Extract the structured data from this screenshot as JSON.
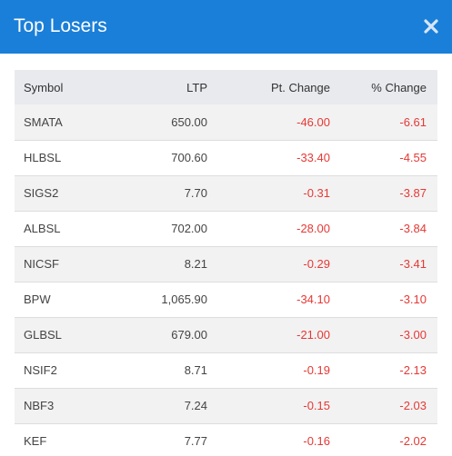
{
  "modal": {
    "title": "Top Losers",
    "close_icon": "close-icon"
  },
  "colors": {
    "header_bg": "#1a7fd8",
    "negative": "#e53935",
    "stripe": "#f2f2f2",
    "thead_bg": "#e8eaee"
  },
  "table": {
    "headers": {
      "symbol": "Symbol",
      "ltp": "LTP",
      "pt_change": "Pt. Change",
      "pct_change": "% Change"
    },
    "rows": [
      {
        "symbol": "SMATA",
        "ltp": "650.00",
        "pt_change": "-46.00",
        "pct_change": "-6.61"
      },
      {
        "symbol": "HLBSL",
        "ltp": "700.60",
        "pt_change": "-33.40",
        "pct_change": "-4.55"
      },
      {
        "symbol": "SIGS2",
        "ltp": "7.70",
        "pt_change": "-0.31",
        "pct_change": "-3.87"
      },
      {
        "symbol": "ALBSL",
        "ltp": "702.00",
        "pt_change": "-28.00",
        "pct_change": "-3.84"
      },
      {
        "symbol": "NICSF",
        "ltp": "8.21",
        "pt_change": "-0.29",
        "pct_change": "-3.41"
      },
      {
        "symbol": "BPW",
        "ltp": "1,065.90",
        "pt_change": "-34.10",
        "pct_change": "-3.10"
      },
      {
        "symbol": "GLBSL",
        "ltp": "679.00",
        "pt_change": "-21.00",
        "pct_change": "-3.00"
      },
      {
        "symbol": "NSIF2",
        "ltp": "8.71",
        "pt_change": "-0.19",
        "pct_change": "-2.13"
      },
      {
        "symbol": "NBF3",
        "ltp": "7.24",
        "pt_change": "-0.15",
        "pct_change": "-2.03"
      },
      {
        "symbol": "KEF",
        "ltp": "7.77",
        "pt_change": "-0.16",
        "pct_change": "-2.02"
      }
    ]
  }
}
